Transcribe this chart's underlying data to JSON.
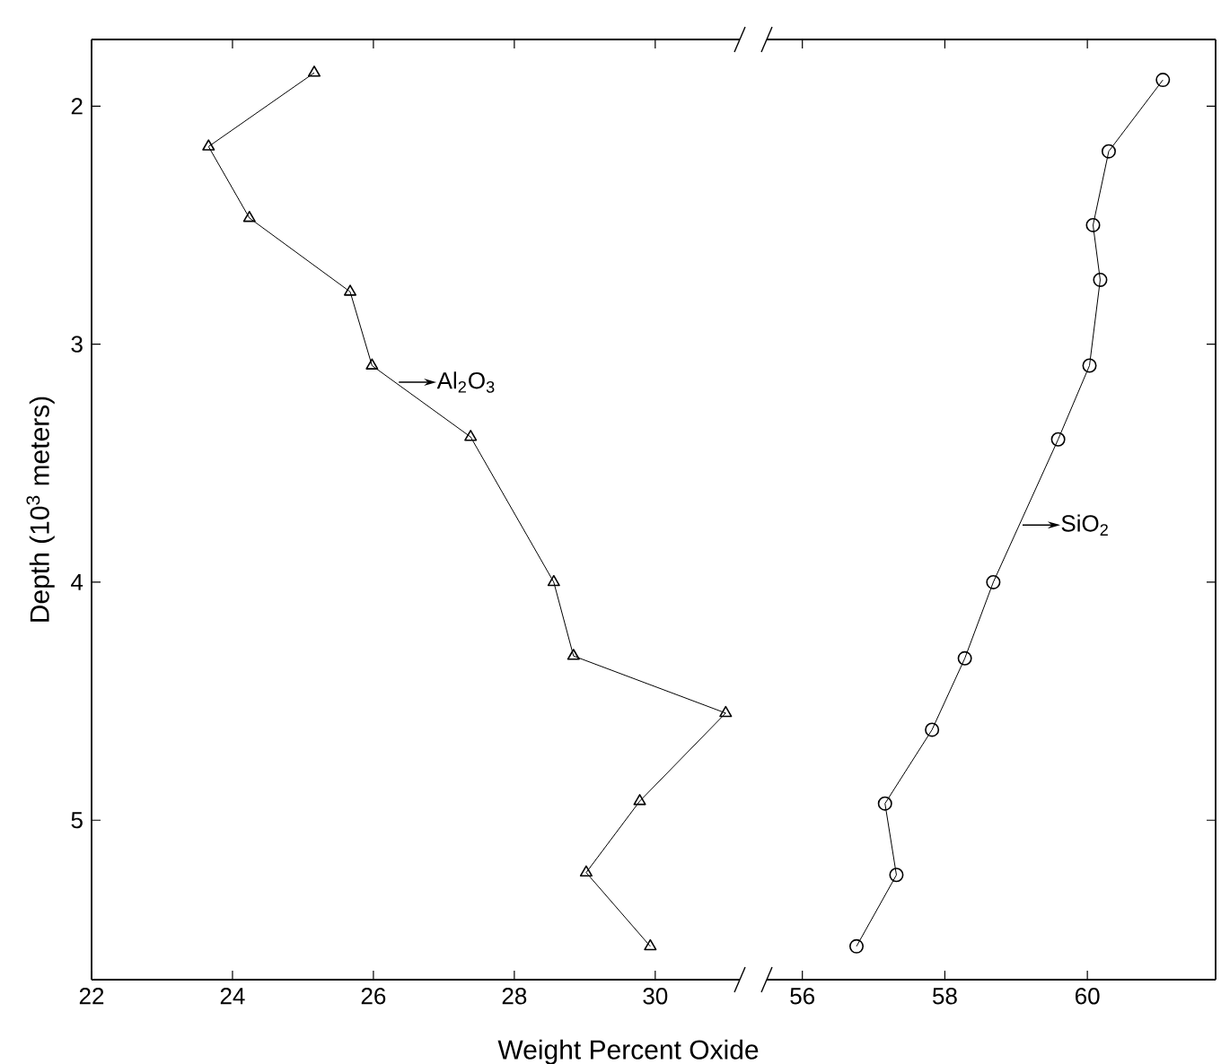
{
  "chart_data": [
    {
      "type": "line",
      "xlabel": "Weight Percent Oxide",
      "ylabel": "Depth (10$^{3}$ meters)",
      "xlim": [
        22,
        31.2
      ],
      "xticks": [
        22,
        24,
        26,
        28,
        30
      ],
      "ylim": [
        5.67,
        1.72
      ],
      "yticks": [
        2,
        3,
        4,
        5
      ],
      "marker": "triangle",
      "line_style": "solid",
      "series": [
        {
          "color": "#000000",
          "x": [
            25.16,
            23.66,
            24.24,
            25.67,
            25.98,
            27.38,
            28.56,
            28.84,
            31.0,
            29.78,
            29.02,
            29.93
          ],
          "values": [
            1.86,
            2.17,
            2.47,
            2.78,
            3.09,
            3.39,
            4.0,
            4.31,
            4.55,
            4.92,
            5.22,
            5.53
          ]
        }
      ],
      "annotations": [
        {
          "text": "Al$_{2}$O$_{3}$",
          "x": 26.31,
          "y": 3.16
        }
      ]
    },
    {
      "type": "line",
      "xlim": [
        55.5,
        61.8
      ],
      "xticks": [
        56,
        58,
        60
      ],
      "ylim": [
        5.67,
        1.72
      ],
      "yticks": [
        {
          "value": 2,
          "label": null
        },
        {
          "value": 3,
          "label": null
        },
        {
          "value": 4,
          "label": null
        },
        {
          "value": 5,
          "label": null
        }
      ],
      "tick_labels": "x",
      "marker": "circle",
      "line_style": "solid",
      "series": [
        {
          "color": "#000000",
          "x": [
            61.06,
            60.3,
            60.08,
            60.18,
            60.03,
            59.59,
            58.68,
            58.28,
            57.82,
            57.16,
            57.32,
            56.76
          ],
          "values": [
            1.89,
            2.19,
            2.5,
            2.73,
            3.09,
            3.4,
            4.0,
            4.32,
            4.62,
            4.93,
            5.23,
            5.53
          ]
        }
      ],
      "annotations": [
        {
          "text": "SiO$_{2}$",
          "x": 59.04,
          "y": 3.76
        }
      ]
    }
  ]
}
